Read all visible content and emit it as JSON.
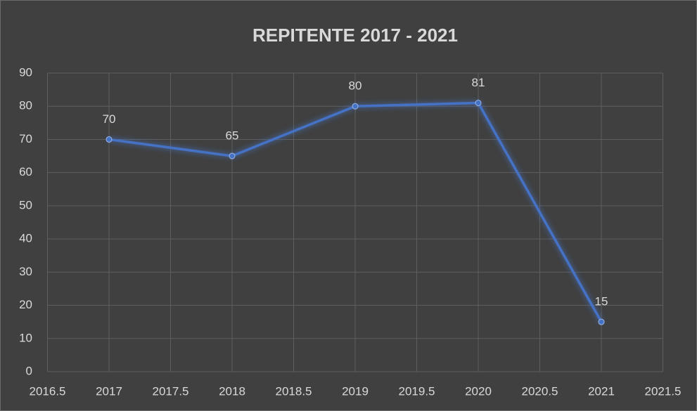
{
  "chart_data": {
    "type": "line",
    "title": "REPITENTE 2017 - 2021",
    "x": [
      2017,
      2018,
      2019,
      2020,
      2021
    ],
    "series": [
      {
        "color": "#4472c4",
        "values": [
          70,
          65,
          80,
          81,
          15
        ]
      }
    ],
    "xlim": [
      2016.5,
      2021.5
    ],
    "xticks": [
      2016.5,
      2017,
      2017.5,
      2018,
      2018.5,
      2019,
      2019.5,
      2020,
      2020.5,
      2021,
      2021.5
    ],
    "ylim": [
      0,
      90
    ],
    "yticks": [
      0,
      10,
      20,
      30,
      40,
      50,
      60,
      70,
      80,
      90
    ],
    "grid": true,
    "data_labels": true
  }
}
